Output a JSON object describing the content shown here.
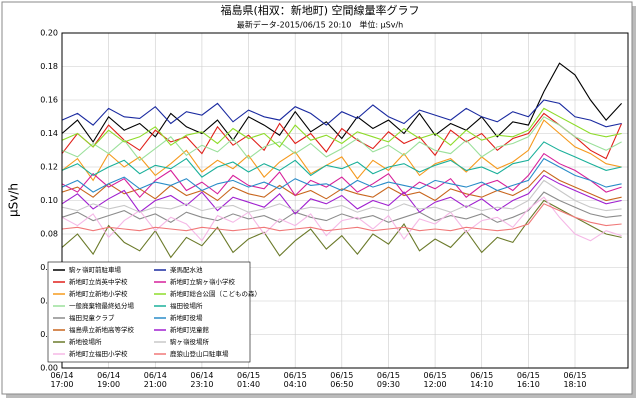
{
  "chart_data": {
    "type": "line",
    "title": "福島県(相双：新地町) 空間線量率グラフ",
    "subtitle": "最新データ-2015/06/15 20:10　単位: μSv/h",
    "y_label": "μSv/h",
    "ylim": [
      0,
      0.2
    ],
    "yticks": [
      {
        "value": 0,
        "label": "0.00"
      },
      {
        "value": 0.02,
        "label": "0.02"
      },
      {
        "value": 0.04,
        "label": "0.04"
      },
      {
        "value": 0.06,
        "label": "0.06"
      },
      {
        "value": 0.08,
        "label": "0.08"
      },
      {
        "value": 0.1,
        "label": "0.10"
      },
      {
        "value": 0.12,
        "label": "0.12"
      },
      {
        "value": 0.14,
        "label": "0.14"
      },
      {
        "value": 0.16,
        "label": "0.16"
      },
      {
        "value": 0.18,
        "label": "0.18"
      },
      {
        "value": 0.2,
        "label": "0.20"
      }
    ],
    "grid": true,
    "legend": "lower left",
    "categories": [
      "06/14\n17:00",
      null,
      null,
      "06/14\n19:00",
      null,
      null,
      "06/14\n21:00",
      null,
      null,
      "06/14\n23:10",
      null,
      null,
      "06/15\n01:40",
      null,
      null,
      "06/15\n04:10",
      null,
      null,
      "06/15\n06:50",
      null,
      null,
      "06/15\n09:30",
      null,
      null,
      "06/15\n12:00",
      null,
      null,
      "06/15\n14:10",
      null,
      null,
      "06/15\n16:10",
      null,
      null,
      "06/15\n18:10",
      null,
      null,
      null
    ],
    "series": [
      {
        "name": "駒ヶ嶺町前駐車場",
        "color": "#000000",
        "values": [
          0.14,
          0.148,
          0.135,
          0.15,
          0.142,
          0.146,
          0.138,
          0.152,
          0.144,
          0.14,
          0.148,
          0.136,
          0.15,
          0.145,
          0.139,
          0.153,
          0.141,
          0.147,
          0.137,
          0.15,
          0.143,
          0.148,
          0.14,
          0.152,
          0.139,
          0.146,
          0.142,
          0.15,
          0.138,
          0.147,
          0.145,
          0.165,
          0.182,
          0.175,
          0.16,
          0.148,
          0.158
        ]
      },
      {
        "name": "新地町立尚英中学校",
        "color": "#e0201a",
        "values": [
          0.128,
          0.14,
          0.132,
          0.145,
          0.136,
          0.13,
          0.142,
          0.135,
          0.138,
          0.128,
          0.144,
          0.133,
          0.139,
          0.13,
          0.146,
          0.134,
          0.14,
          0.129,
          0.143,
          0.136,
          0.131,
          0.141,
          0.134,
          0.138,
          0.127,
          0.142,
          0.135,
          0.14,
          0.13,
          0.137,
          0.14,
          0.152,
          0.145,
          0.138,
          0.13,
          0.125,
          0.146
        ]
      },
      {
        "name": "新地町立新地小学校",
        "color": "#f59a1e",
        "values": [
          0.118,
          0.125,
          0.112,
          0.128,
          0.12,
          0.126,
          0.115,
          0.122,
          0.13,
          0.117,
          0.124,
          0.119,
          0.127,
          0.114,
          0.123,
          0.129,
          0.116,
          0.121,
          0.126,
          0.113,
          0.124,
          0.118,
          0.128,
          0.115,
          0.122,
          0.125,
          0.117,
          0.126,
          0.119,
          0.123,
          0.13,
          0.148,
          0.14,
          0.132,
          0.128,
          0.122,
          0.12
        ]
      },
      {
        "name": "一般廃棄物最終処分場",
        "color": "#9be09b",
        "values": [
          0.13,
          0.126,
          0.134,
          0.128,
          0.136,
          0.124,
          0.131,
          0.138,
          0.127,
          0.133,
          0.129,
          0.137,
          0.125,
          0.132,
          0.135,
          0.128,
          0.134,
          0.126,
          0.131,
          0.137,
          0.129,
          0.133,
          0.127,
          0.135,
          0.13,
          0.128,
          0.136,
          0.126,
          0.132,
          0.134,
          0.138,
          0.15,
          0.145,
          0.138,
          0.134,
          0.13,
          0.135
        ]
      },
      {
        "name": "福田児童クラブ",
        "color": "#8c8c8c",
        "values": [
          0.09,
          0.093,
          0.088,
          0.091,
          0.094,
          0.089,
          0.092,
          0.087,
          0.093,
          0.09,
          0.088,
          0.092,
          0.089,
          0.091,
          0.087,
          0.093,
          0.09,
          0.088,
          0.092,
          0.089,
          0.091,
          0.087,
          0.09,
          0.093,
          0.088,
          0.091,
          0.089,
          0.092,
          0.087,
          0.09,
          0.094,
          0.105,
          0.1,
          0.096,
          0.092,
          0.09,
          0.091
        ]
      },
      {
        "name": "福島県立新地高等学校",
        "color": "#c8661e",
        "values": [
          0.105,
          0.108,
          0.102,
          0.11,
          0.104,
          0.107,
          0.101,
          0.109,
          0.103,
          0.106,
          0.1,
          0.108,
          0.104,
          0.102,
          0.109,
          0.103,
          0.106,
          0.101,
          0.107,
          0.104,
          0.102,
          0.108,
          0.103,
          0.105,
          0.1,
          0.107,
          0.104,
          0.102,
          0.106,
          0.103,
          0.108,
          0.118,
          0.112,
          0.108,
          0.104,
          0.1,
          0.102
        ]
      },
      {
        "name": "新地役場所",
        "color": "#6b7a2a",
        "values": [
          0.072,
          0.08,
          0.068,
          0.085,
          0.075,
          0.07,
          0.082,
          0.066,
          0.078,
          0.073,
          0.084,
          0.069,
          0.077,
          0.081,
          0.067,
          0.076,
          0.083,
          0.071,
          0.079,
          0.068,
          0.08,
          0.074,
          0.086,
          0.07,
          0.077,
          0.072,
          0.082,
          0.069,
          0.078,
          0.075,
          0.088,
          0.1,
          0.095,
          0.09,
          0.085,
          0.08,
          0.078
        ]
      },
      {
        "name": "新地町立福田小学校",
        "color": "#f5b8e6",
        "values": [
          0.09,
          0.085,
          0.092,
          0.078,
          0.088,
          0.094,
          0.082,
          0.09,
          0.086,
          0.076,
          0.091,
          0.087,
          0.093,
          0.08,
          0.089,
          0.085,
          0.092,
          0.079,
          0.088,
          0.09,
          0.083,
          0.091,
          0.077,
          0.089,
          0.086,
          0.093,
          0.081,
          0.088,
          0.09,
          0.084,
          0.095,
          0.102,
          0.09,
          0.08,
          0.076,
          0.082,
          0.079
        ]
      },
      {
        "name": "楽馬配水池",
        "color": "#1a2aa0",
        "values": [
          0.148,
          0.152,
          0.145,
          0.155,
          0.15,
          0.149,
          0.156,
          0.146,
          0.153,
          0.151,
          0.158,
          0.147,
          0.154,
          0.15,
          0.148,
          0.156,
          0.152,
          0.145,
          0.153,
          0.149,
          0.157,
          0.15,
          0.146,
          0.154,
          0.151,
          0.148,
          0.155,
          0.15,
          0.147,
          0.153,
          0.15,
          0.16,
          0.158,
          0.15,
          0.148,
          0.144,
          0.146
        ]
      },
      {
        "name": "新地町立駒ヶ嶺小学校",
        "color": "#d6209a",
        "values": [
          0.11,
          0.105,
          0.116,
          0.108,
          0.113,
          0.102,
          0.112,
          0.118,
          0.106,
          0.111,
          0.104,
          0.115,
          0.109,
          0.107,
          0.117,
          0.103,
          0.112,
          0.108,
          0.114,
          0.105,
          0.11,
          0.116,
          0.104,
          0.111,
          0.107,
          0.113,
          0.102,
          0.109,
          0.112,
          0.106,
          0.115,
          0.128,
          0.122,
          0.118,
          0.112,
          0.105,
          0.108
        ]
      },
      {
        "name": "新地町総合公園（こどもの森）",
        "color": "#8edc2a",
        "values": [
          0.136,
          0.14,
          0.132,
          0.142,
          0.135,
          0.138,
          0.144,
          0.133,
          0.139,
          0.141,
          0.134,
          0.143,
          0.137,
          0.14,
          0.132,
          0.145,
          0.136,
          0.139,
          0.134,
          0.141,
          0.138,
          0.135,
          0.143,
          0.137,
          0.14,
          0.133,
          0.142,
          0.136,
          0.139,
          0.138,
          0.142,
          0.155,
          0.15,
          0.145,
          0.14,
          0.138,
          0.14
        ]
      },
      {
        "name": "福田役場所",
        "color": "#1ab09a",
        "values": [
          0.118,
          0.122,
          0.115,
          0.12,
          0.124,
          0.116,
          0.121,
          0.119,
          0.125,
          0.114,
          0.12,
          0.123,
          0.117,
          0.122,
          0.118,
          0.124,
          0.115,
          0.121,
          0.119,
          0.123,
          0.116,
          0.12,
          0.122,
          0.117,
          0.121,
          0.124,
          0.118,
          0.12,
          0.116,
          0.122,
          0.124,
          0.135,
          0.13,
          0.126,
          0.122,
          0.118,
          0.12
        ]
      },
      {
        "name": "新地町役場",
        "color": "#2a8cc8",
        "values": [
          0.108,
          0.112,
          0.105,
          0.11,
          0.114,
          0.107,
          0.111,
          0.109,
          0.113,
          0.106,
          0.11,
          0.112,
          0.108,
          0.111,
          0.107,
          0.113,
          0.109,
          0.11,
          0.106,
          0.112,
          0.108,
          0.111,
          0.109,
          0.107,
          0.112,
          0.11,
          0.108,
          0.111,
          0.106,
          0.109,
          0.112,
          0.125,
          0.12,
          0.115,
          0.112,
          0.108,
          0.11
        ]
      },
      {
        "name": "新地町児童館",
        "color": "#a020d0",
        "values": [
          0.098,
          0.104,
          0.095,
          0.101,
          0.106,
          0.093,
          0.1,
          0.103,
          0.097,
          0.105,
          0.094,
          0.102,
          0.099,
          0.096,
          0.104,
          0.092,
          0.101,
          0.098,
          0.103,
          0.095,
          0.1,
          0.097,
          0.105,
          0.093,
          0.099,
          0.102,
          0.096,
          0.101,
          0.094,
          0.1,
          0.104,
          0.115,
          0.11,
          0.106,
          0.102,
          0.098,
          0.1
        ]
      },
      {
        "name": "駒ヶ嶺役場所",
        "color": "#c8c8c8",
        "values": [
          0.096,
          0.094,
          0.098,
          0.095,
          0.097,
          0.093,
          0.096,
          0.095,
          0.098,
          0.094,
          0.096,
          0.097,
          0.093,
          0.095,
          0.098,
          0.094,
          0.096,
          0.095,
          0.097,
          0.093,
          0.096,
          0.094,
          0.098,
          0.095,
          0.096,
          0.093,
          0.097,
          0.094,
          0.096,
          0.095,
          0.1,
          0.112,
          0.106,
          0.1,
          0.096,
          0.094,
          0.095
        ]
      },
      {
        "name": "鹿狼山登山口駐車場",
        "color": "#f07878",
        "values": [
          0.083,
          0.084,
          0.082,
          0.084,
          0.083,
          0.082,
          0.084,
          0.083,
          0.082,
          0.084,
          0.083,
          0.082,
          0.083,
          0.084,
          0.082,
          0.083,
          0.084,
          0.082,
          0.083,
          0.084,
          0.082,
          0.083,
          0.084,
          0.082,
          0.083,
          0.082,
          0.084,
          0.083,
          0.082,
          0.083,
          0.086,
          0.098,
          0.094,
          0.09,
          0.087,
          0.085,
          0.086
        ]
      }
    ]
  }
}
